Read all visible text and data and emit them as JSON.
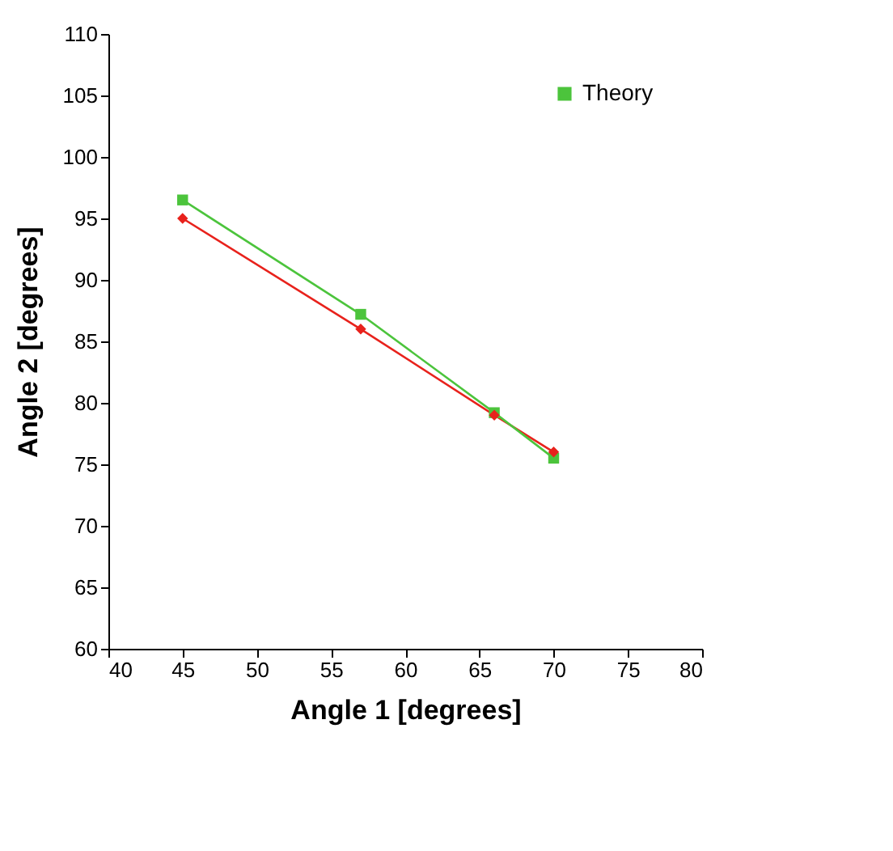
{
  "chart_data": {
    "type": "line",
    "xlabel": "Angle 1 [degrees]",
    "ylabel": "Angle 2 [degrees]",
    "x": [
      45,
      57,
      66,
      70
    ],
    "series": [
      {
        "color": "#e8221c",
        "marker": "diamond",
        "values": [
          95,
          86,
          79,
          76
        ]
      },
      {
        "name": "Theory",
        "color": "#4cc43c",
        "marker": "square",
        "values": [
          96.5,
          87.2,
          79.2,
          75.5
        ]
      }
    ],
    "xlim": [
      40,
      80
    ],
    "xticks": [
      40,
      45,
      50,
      55,
      60,
      65,
      70,
      75,
      80
    ],
    "ylim": [
      60,
      110
    ],
    "yticks": [
      60,
      65,
      70,
      75,
      80,
      85,
      90,
      95,
      100,
      105,
      110
    ],
    "grid": false,
    "legend": "top right"
  }
}
